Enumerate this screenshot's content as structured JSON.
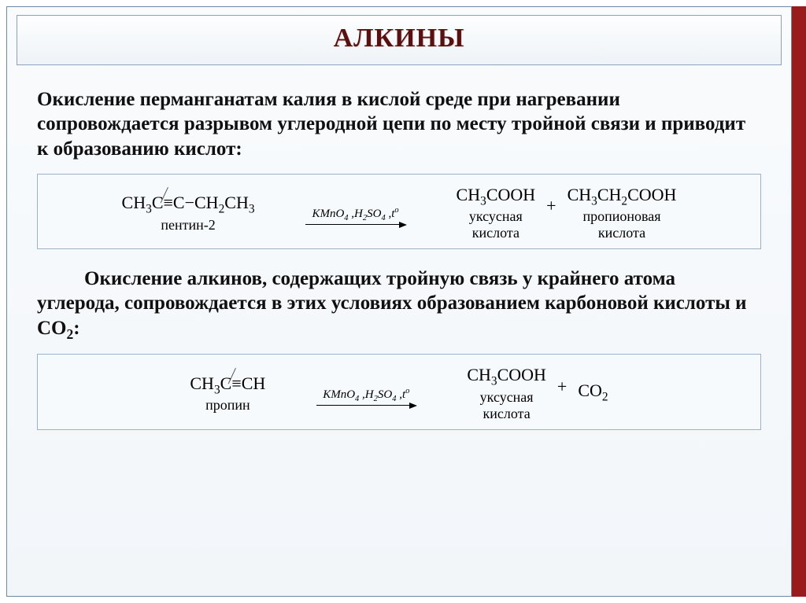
{
  "slide": {
    "title": "АЛКИНЫ",
    "title_color": "#5b0f0f",
    "accent_color": "#9a1b1b",
    "border_color": "#6a8aa8",
    "bg_gradient": [
      "#f9fbfd",
      "#f2f6f9"
    ]
  },
  "paragraph1": "Окисление перманганатам калия в кислой среде при нагревании сопровождается разрывом углеродной цепи по месту тройной связи и приводит к образованию кислот:",
  "reaction1": {
    "reactant": {
      "formula": "CH3C≡C−CH2CH3",
      "label": "пентин-2"
    },
    "conditions": "KMnO4 ,H2SO4 ,t°",
    "product1": {
      "formula": "CH3COOH",
      "label1": "уксусная",
      "label2": "кислота"
    },
    "plus": "+",
    "product2": {
      "formula": "CH3CH2COOH",
      "label1": "пропионовая",
      "label2": "кислота"
    }
  },
  "paragraph2": "Окисление алкинов, содержащих тройную связь у крайнего атома углерода, сопровождается в этих условиях образованием карбоновой кислоты и СО2:",
  "reaction2": {
    "reactant": {
      "formula": "CH3C≡CH",
      "label": "пропин"
    },
    "conditions": "KMnO4 ,H2SO4 ,t°",
    "product1": {
      "formula": "CH3COOH",
      "label1": "уксусная",
      "label2": "кислота"
    },
    "plus": "+",
    "product2": {
      "formula": "CO2",
      "label": ""
    }
  },
  "typography": {
    "title_fontsize": 34,
    "body_fontsize": 25,
    "formula_fontsize": 22,
    "label_fontsize": 18,
    "font_family": "Times New Roman"
  },
  "reaction_box": {
    "border_color": "#9cb2c6",
    "background": "#f7fafc"
  }
}
